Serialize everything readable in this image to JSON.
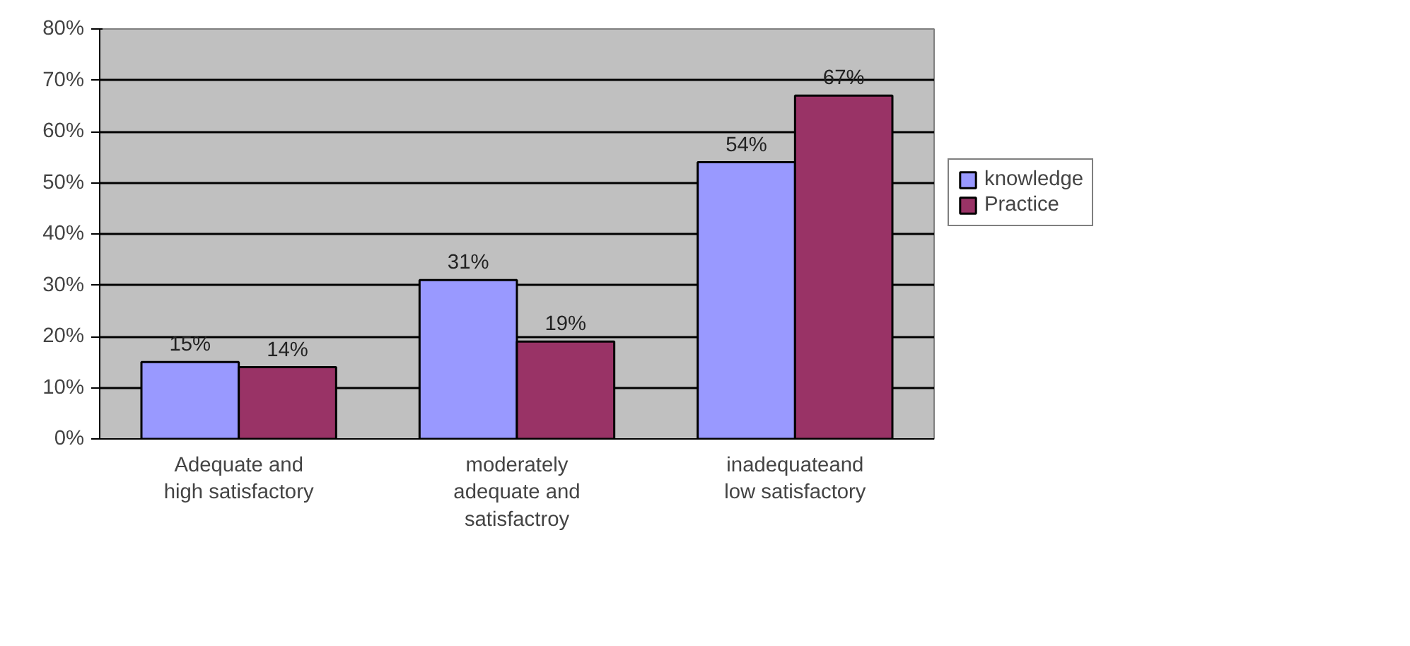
{
  "chart_data": {
    "type": "bar",
    "categories": [
      "Adequate and\nhigh satisfactory",
      "moderately\nadequate and\nsatisfactroy",
      "inadequateand\nlow satisfactory"
    ],
    "series": [
      {
        "name": "knowledge",
        "color": "#9999ff",
        "values": [
          15,
          31,
          54
        ],
        "value_labels": [
          "15%",
          "31%",
          "54%"
        ]
      },
      {
        "name": "Practice",
        "color": "#993366",
        "values": [
          14,
          19,
          67
        ],
        "value_labels": [
          "14%",
          "19%",
          "67%"
        ]
      }
    ],
    "ylim": [
      0,
      80
    ],
    "yticks": [
      {
        "value": 0,
        "label": "0%"
      },
      {
        "value": 10,
        "label": "10%"
      },
      {
        "value": 20,
        "label": "20%"
      },
      {
        "value": 30,
        "label": "30%"
      },
      {
        "value": 40,
        "label": "40%"
      },
      {
        "value": 50,
        "label": "50%"
      },
      {
        "value": 60,
        "label": "60%"
      },
      {
        "value": 70,
        "label": "70%"
      },
      {
        "value": 80,
        "label": "80%"
      }
    ],
    "grid": "y",
    "legend": "right"
  }
}
